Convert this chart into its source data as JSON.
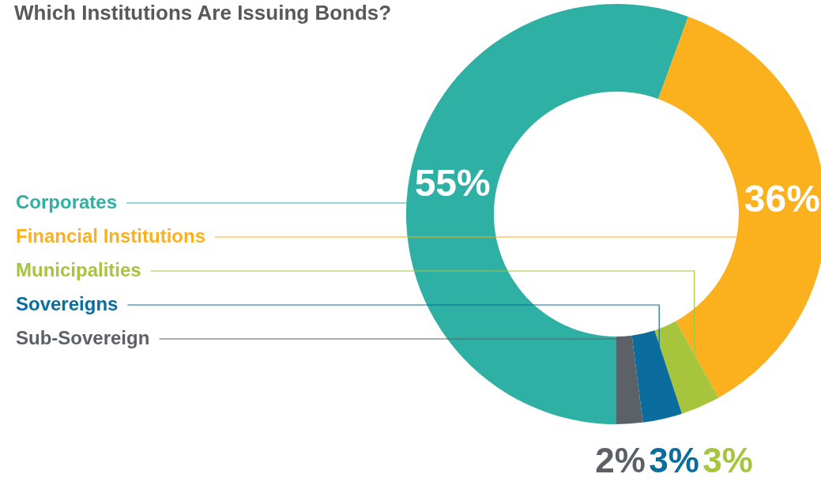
{
  "chart_data": {
    "type": "donut",
    "title": "Which Institutions Are Issuing Bonds?",
    "categories": [
      "Corporates",
      "Financial Institutions",
      "Municipalities",
      "Sovereigns",
      "Sub-Sovereign"
    ],
    "values": [
      55,
      36,
      3,
      3,
      2
    ],
    "colors": [
      "#2eb0a5",
      "#fbb01d",
      "#a6c53c",
      "#0a6d9e",
      "#5b6167"
    ],
    "value_labels": [
      "55%",
      "36%",
      "3%",
      "3%",
      "2%"
    ]
  }
}
